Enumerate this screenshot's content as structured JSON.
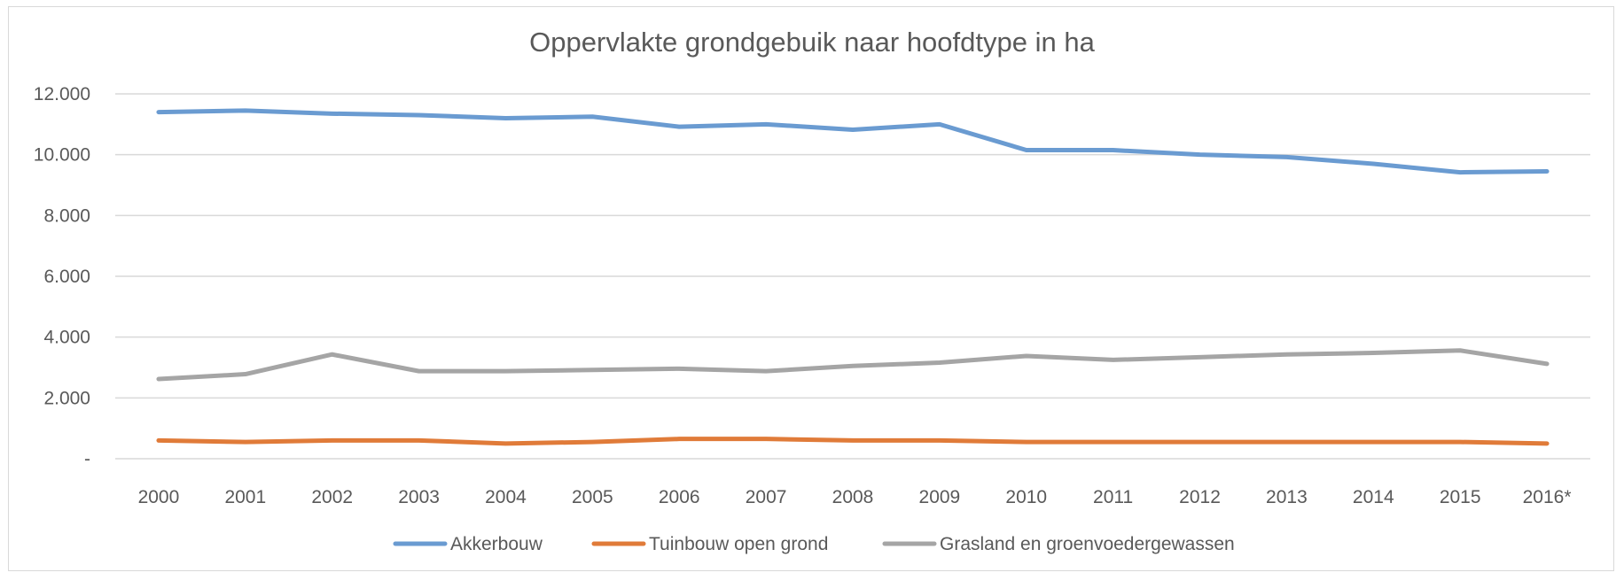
{
  "chart_data": {
    "type": "line",
    "title": "Oppervlakte grondgebuik naar hoofdtype in ha",
    "xlabel": "",
    "ylabel": "",
    "categories": [
      "2000",
      "2001",
      "2002",
      "2003",
      "2004",
      "2005",
      "2006",
      "2007",
      "2008",
      "2009",
      "2010",
      "2011",
      "2012",
      "2013",
      "2014",
      "2015",
      "2016*"
    ],
    "ylim": [
      0,
      12000
    ],
    "yticks": [
      0,
      2000,
      4000,
      6000,
      8000,
      10000,
      12000
    ],
    "ytick_labels": [
      "-",
      "2.000",
      "4.000",
      "6.000",
      "8.000",
      "10.000",
      "12.000"
    ],
    "grid": true,
    "legend_position": "bottom",
    "series": [
      {
        "name": "Akkerbouw",
        "color": "#6a9bd1",
        "values": [
          11400,
          11450,
          11350,
          11300,
          11200,
          11250,
          10920,
          11000,
          10820,
          11000,
          10150,
          10150,
          10000,
          9920,
          9700,
          9420,
          9450
        ]
      },
      {
        "name": "Tuinbouw open grond",
        "color": "#e07b39",
        "values": [
          600,
          550,
          600,
          600,
          500,
          550,
          650,
          650,
          600,
          600,
          550,
          550,
          550,
          550,
          550,
          550,
          500
        ]
      },
      {
        "name": "Grasland en groenvoedergewassen",
        "color": "#a5a5a5",
        "values": [
          2620,
          2780,
          3430,
          2880,
          2880,
          2920,
          2960,
          2880,
          3050,
          3160,
          3380,
          3250,
          3340,
          3430,
          3480,
          3560,
          3120
        ]
      }
    ]
  }
}
